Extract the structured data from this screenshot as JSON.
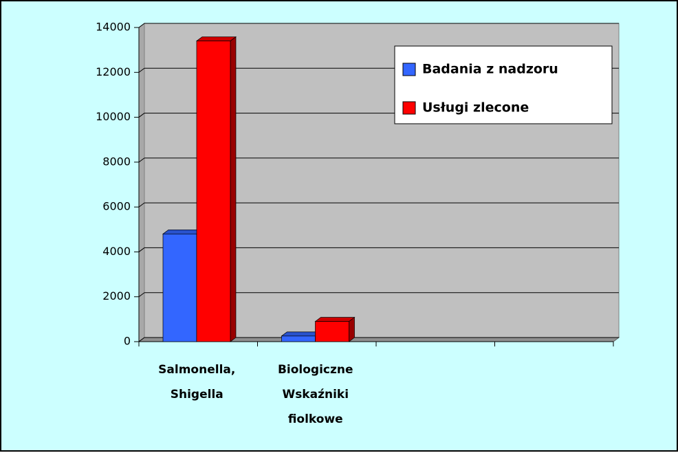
{
  "chart_data": {
    "type": "bar3d",
    "categories": [
      "Salmonella, Shigella",
      "Biologiczne Wskaźniki fiolkowe",
      null,
      null
    ],
    "series": [
      {
        "name": "Badania z nadzoru",
        "color": "#3366ff",
        "values": [
          4800,
          250,
          null,
          null
        ]
      },
      {
        "name": "Usługi zlecone",
        "color": "#ff0000",
        "values": [
          13400,
          900,
          null,
          null
        ]
      }
    ],
    "ylim": [
      0,
      14000
    ],
    "yticks": [
      0,
      2000,
      4000,
      6000,
      8000,
      10000,
      12000,
      14000
    ],
    "grid": true,
    "legend": "top-right"
  }
}
